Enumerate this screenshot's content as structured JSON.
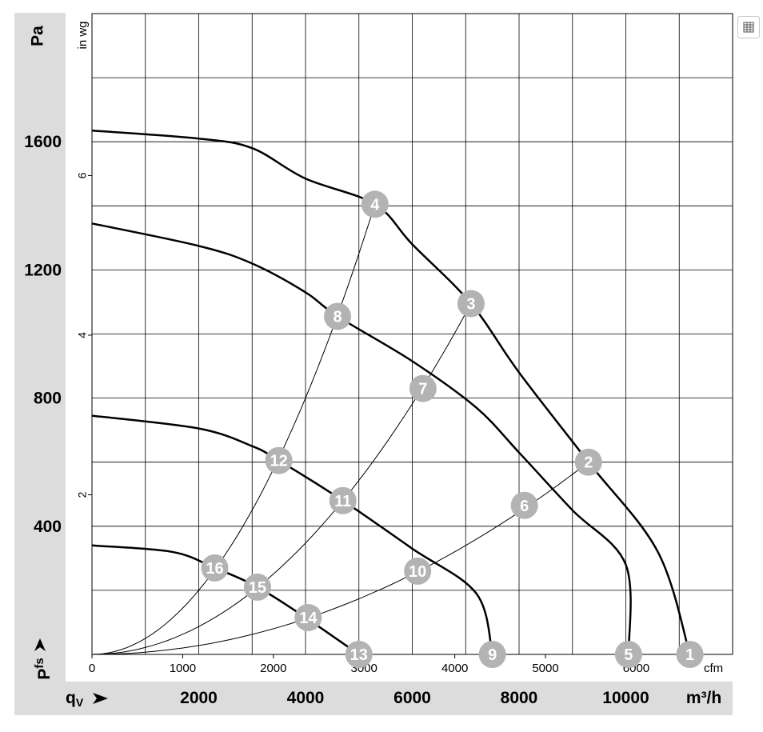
{
  "chart_data": {
    "type": "line",
    "y_unit": "Pa",
    "y_unit_secondary": "in wg",
    "x_unit_secondary": "cfm",
    "x_unit": "m³/h",
    "y_symbol": "P",
    "y_symbol_sub": "fs",
    "x_symbol": "q",
    "x_symbol_sub": "V",
    "ylim": [
      0,
      2000
    ],
    "xlim_m3h": [
      0,
      12000
    ],
    "y_ticks_pa": [
      400,
      800,
      1200,
      1600
    ],
    "y_ticks_inwg": [
      2,
      4,
      6
    ],
    "x_ticks_cfm": [
      0,
      1000,
      2000,
      3000,
      4000,
      5000,
      6000
    ],
    "x_ticks_m3h": [
      2000,
      4000,
      6000,
      8000,
      10000
    ],
    "fan_curves": [
      {
        "points": [
          [
            0,
            1635
          ],
          [
            2000,
            1610
          ],
          [
            3000,
            1580
          ],
          [
            4000,
            1485
          ],
          [
            5300,
            1405
          ],
          [
            6000,
            1280
          ],
          [
            7100,
            1095
          ],
          [
            8000,
            880
          ],
          [
            9300,
            600
          ],
          [
            10600,
            320
          ],
          [
            11200,
            0
          ]
        ]
      },
      {
        "points": [
          [
            0,
            1345
          ],
          [
            2000,
            1275
          ],
          [
            3000,
            1220
          ],
          [
            4000,
            1130
          ],
          [
            4600,
            1055
          ],
          [
            6000,
            915
          ],
          [
            7200,
            770
          ],
          [
            8000,
            630
          ],
          [
            9000,
            450
          ],
          [
            10000,
            280
          ],
          [
            10050,
            0
          ]
        ]
      },
      {
        "points": [
          [
            0,
            745
          ],
          [
            2000,
            705
          ],
          [
            3000,
            650
          ],
          [
            3500,
            605
          ],
          [
            4700,
            480
          ],
          [
            6000,
            330
          ],
          [
            7200,
            190
          ],
          [
            7500,
            0
          ]
        ]
      },
      {
        "points": [
          [
            0,
            340
          ],
          [
            1500,
            320
          ],
          [
            2300,
            270
          ],
          [
            3100,
            210
          ],
          [
            4000,
            115
          ],
          [
            5000,
            0
          ]
        ]
      }
    ],
    "system_curves": [
      {
        "to": [
          5300,
          1405
        ]
      },
      {
        "to": [
          7100,
          1095
        ]
      },
      {
        "to": [
          9300,
          600
        ]
      }
    ],
    "operating_points": [
      {
        "label": "1",
        "x": 11200,
        "y": 0
      },
      {
        "label": "2",
        "x": 9300,
        "y": 600
      },
      {
        "label": "3",
        "x": 7100,
        "y": 1095
      },
      {
        "label": "4",
        "x": 5300,
        "y": 1405
      },
      {
        "label": "5",
        "x": 10050,
        "y": 0
      },
      {
        "label": "6",
        "x": 8100,
        "y": 465
      },
      {
        "label": "7",
        "x": 6200,
        "y": 830
      },
      {
        "label": "8",
        "x": 4600,
        "y": 1055
      },
      {
        "label": "9",
        "x": 7500,
        "y": 0
      },
      {
        "label": "10",
        "x": 6100,
        "y": 260
      },
      {
        "label": "11",
        "x": 4700,
        "y": 480
      },
      {
        "label": "12",
        "x": 3500,
        "y": 605
      },
      {
        "label": "13",
        "x": 5000,
        "y": 0
      },
      {
        "label": "14",
        "x": 4050,
        "y": 115
      },
      {
        "label": "15",
        "x": 3100,
        "y": 210
      },
      {
        "label": "16",
        "x": 2300,
        "y": 270
      }
    ]
  },
  "icons": {
    "corner": "table-icon"
  }
}
